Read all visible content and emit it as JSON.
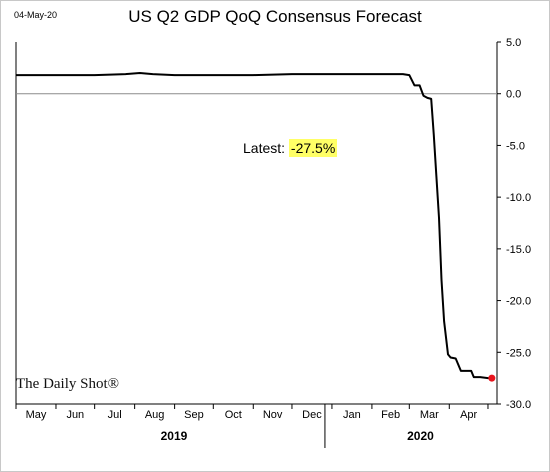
{
  "header": {
    "date": "04-May-20",
    "title": "US Q2 GDP QoQ Consensus Forecast"
  },
  "annotation": {
    "label": "Latest:",
    "value": "-27.5%"
  },
  "brand": "The Daily Shot®",
  "colors": {
    "line": "#000000",
    "latest_point": "#e8141c",
    "highlight": "#ffff66",
    "zero_line": "#8c8c8c"
  },
  "chart_data": {
    "type": "line",
    "title": "US Q2 GDP QoQ Consensus Forecast",
    "xlabel": "",
    "ylabel": "",
    "ylim": [
      -30,
      5
    ],
    "yticks": [
      5.0,
      0.0,
      -5.0,
      -10.0,
      -15.0,
      -20.0,
      -25.0,
      -30.0
    ],
    "ytick_labels": [
      "5.0",
      "0.0",
      "-5.0",
      "-10.0",
      "-15.0",
      "-20.0",
      "-25.0",
      "-30.0"
    ],
    "x_month_labels": [
      "May",
      "Jun",
      "Jul",
      "Aug",
      "Sep",
      "Oct",
      "Nov",
      "Dec",
      "Jan",
      "Feb",
      "Mar",
      "Apr"
    ],
    "x_year_labels": [
      "2019",
      "2020"
    ],
    "grid": false,
    "series": [
      {
        "values_note": "dates in YYYY-MM-DD",
        "x": [
          "2019-05-01",
          "2019-06-01",
          "2019-07-01",
          "2019-07-25",
          "2019-08-05",
          "2019-08-15",
          "2019-09-01",
          "2019-10-01",
          "2019-11-01",
          "2019-12-01",
          "2020-01-01",
          "2020-02-01",
          "2020-02-25",
          "2020-03-01",
          "2020-03-05",
          "2020-03-09",
          "2020-03-12",
          "2020-03-15",
          "2020-03-18",
          "2020-03-20",
          "2020-03-22",
          "2020-03-24",
          "2020-03-26",
          "2020-03-28",
          "2020-03-31",
          "2020-04-02",
          "2020-04-06",
          "2020-04-10",
          "2020-04-14",
          "2020-04-18",
          "2020-04-20",
          "2020-04-25",
          "2020-05-01",
          "2020-05-04"
        ],
        "y": [
          1.8,
          1.8,
          1.8,
          1.9,
          2.0,
          1.9,
          1.8,
          1.8,
          1.8,
          1.9,
          1.9,
          1.9,
          1.9,
          1.8,
          0.8,
          0.8,
          -0.2,
          -0.4,
          -0.5,
          -4.0,
          -8.0,
          -12.0,
          -18.0,
          -22.0,
          -25.2,
          -25.5,
          -25.6,
          -26.8,
          -26.8,
          -26.8,
          -27.4,
          -27.4,
          -27.5,
          -27.5
        ]
      }
    ],
    "latest": {
      "x": "2020-05-04",
      "y": -27.5
    }
  }
}
